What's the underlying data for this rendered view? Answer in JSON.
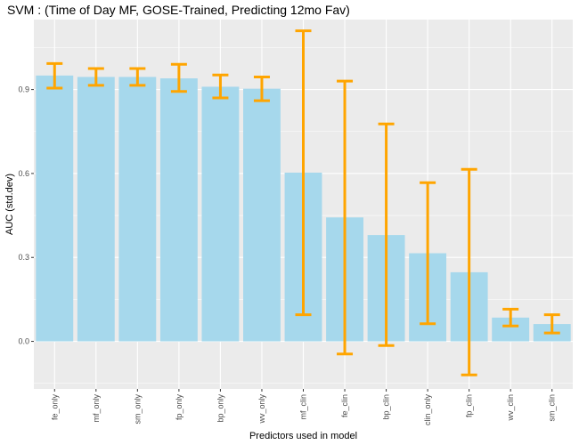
{
  "chart_data": {
    "type": "bar",
    "title": "SVM : (Time of Day MF, GOSE-Trained, Predicting 12mo Fav)",
    "xlabel": "Predictors used in model",
    "ylabel": "AUC (std.dev)",
    "ylim": [
      -0.17,
      1.15
    ],
    "yticks": [
      0.0,
      0.3,
      0.6,
      0.9
    ],
    "grid": true,
    "legend": "none",
    "bar_color": "#a6d8ec",
    "errorbar_color": "#ffa500",
    "panel_color": "#ebebeb",
    "categories": [
      "fe_only",
      "mf_only",
      "sm_only",
      "fp_only",
      "bp_only",
      "wv_only",
      "mf_clin",
      "fe_clin",
      "bp_clin",
      "clin_only",
      "fp_clin",
      "wv_clin",
      "sm_clin"
    ],
    "values": [
      0.95,
      0.945,
      0.945,
      0.94,
      0.91,
      0.903,
      0.603,
      0.443,
      0.38,
      0.315,
      0.247,
      0.085,
      0.062
    ],
    "error_low": [
      0.905,
      0.915,
      0.915,
      0.893,
      0.87,
      0.86,
      0.095,
      -0.045,
      -0.015,
      0.063,
      -0.12,
      0.055,
      0.03
    ],
    "error_high": [
      0.993,
      0.975,
      0.975,
      0.99,
      0.952,
      0.945,
      1.11,
      0.93,
      0.777,
      0.567,
      0.615,
      0.115,
      0.095
    ]
  }
}
